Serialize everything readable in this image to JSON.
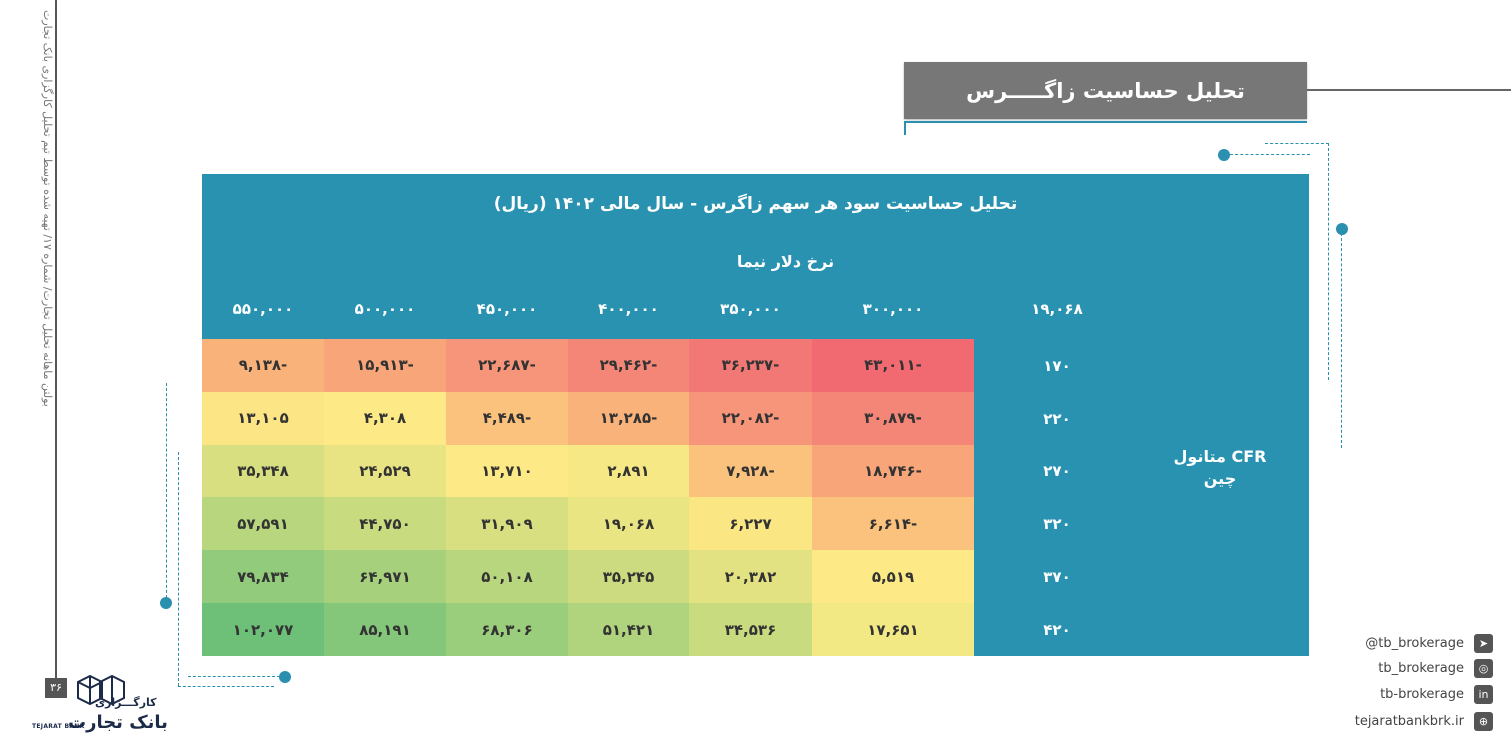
{
  "page": {
    "side_note": "بولتن ماهانه تحلیل تجارت/ شماره ۱۷/ تهیه شده توسط تیم تحلیل کارگزاری بانک تجارت",
    "page_number": "۳۶"
  },
  "header": {
    "title": "تحلیل حساسیت زاگـــــرس"
  },
  "table": {
    "title": "تحلیل حساسیت سود هر سهم زاگرس - سال مالی ۱۴۰۲ (ریال)",
    "column_axis_label": "نرخ دلار نیما",
    "row_axis_label_line1": "متانول CFR",
    "row_axis_label_line2": "چین",
    "corner_value": "۱۹,۰۶۸",
    "columns": [
      "۵۵۰,۰۰۰",
      "۵۰۰,۰۰۰",
      "۴۵۰,۰۰۰",
      "۴۰۰,۰۰۰",
      "۳۵۰,۰۰۰",
      "۳۰۰,۰۰۰"
    ],
    "rows": [
      {
        "label": "۱۷۰",
        "cells": [
          "۹,۱۳۸-",
          "۱۵,۹۱۳-",
          "۲۲,۶۸۷-",
          "۲۹,۴۶۲-",
          "۳۶,۲۳۷-",
          "۴۳,۰۱۱-"
        ]
      },
      {
        "label": "۲۲۰",
        "cells": [
          "۱۳,۱۰۵",
          "۴,۳۰۸",
          "۴,۴۸۹-",
          "۱۳,۲۸۵-",
          "۲۲,۰۸۲-",
          "۳۰,۸۷۹-"
        ]
      },
      {
        "label": "۲۷۰",
        "cells": [
          "۳۵,۳۴۸",
          "۲۴,۵۲۹",
          "۱۳,۷۱۰",
          "۲,۸۹۱",
          "۷,۹۲۸-",
          "۱۸,۷۴۶-"
        ]
      },
      {
        "label": "۳۲۰",
        "cells": [
          "۵۷,۵۹۱",
          "۴۴,۷۵۰",
          "۳۱,۹۰۹",
          "۱۹,۰۶۸",
          "۶,۲۲۷",
          "۶,۶۱۴-"
        ]
      },
      {
        "label": "۳۷۰",
        "cells": [
          "۷۹,۸۳۴",
          "۶۴,۹۷۱",
          "۵۰,۱۰۸",
          "۳۵,۲۴۵",
          "۲۰,۳۸۲",
          "۵,۵۱۹"
        ]
      },
      {
        "label": "۴۲۰",
        "cells": [
          "۱۰۲,۰۷۷",
          "۸۵,۱۹۱",
          "۶۸,۳۰۶",
          "۵۱,۴۲۱",
          "۳۴,۵۳۶",
          "۱۷,۶۵۱"
        ]
      }
    ],
    "cell_colors": [
      [
        "#f9b27a",
        "#f8a57a",
        "#f69579",
        "#f48677",
        "#f27876",
        "#f16a72"
      ],
      [
        "#fbe584",
        "#fde985",
        "#fbc27d",
        "#f9b27a",
        "#f69579",
        "#f48677"
      ],
      [
        "#d8df80",
        "#e9e483",
        "#fde985",
        "#f6e884",
        "#fbc27d",
        "#f8a57a"
      ],
      [
        "#b8d67d",
        "#c8db7f",
        "#d8df80",
        "#eae583",
        "#fae784",
        "#fbc27d"
      ],
      [
        "#91cb7b",
        "#a6d07c",
        "#b8d67d",
        "#ccdb7f",
        "#e2e282",
        "#fde985"
      ],
      [
        "#6ebf78",
        "#84c77a",
        "#9acd7c",
        "#b0d47d",
        "#c8db7f",
        "#f2e884"
      ]
    ]
  },
  "footer": {
    "logo_brand": "بانک تجارت",
    "logo_prefix": "کارگـــزاری",
    "logo_en": "TEJARAT BANK",
    "social": [
      {
        "icon": "telegram-icon",
        "text": "@tb_brokerage"
      },
      {
        "icon": "instagram-icon",
        "text": "tb_brokerage"
      },
      {
        "icon": "linkedin-icon",
        "text": "tb-brokerage"
      },
      {
        "icon": "globe-icon",
        "text": "tejaratbankbrk.ir"
      }
    ]
  }
}
